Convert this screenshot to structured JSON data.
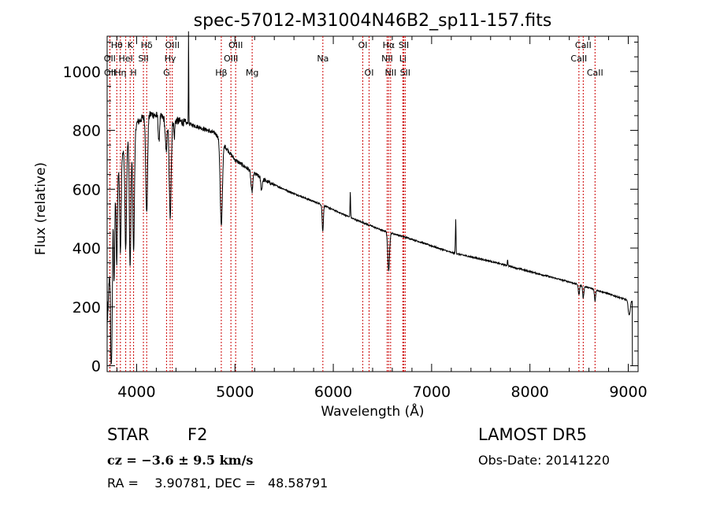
{
  "chart_data": {
    "type": "line",
    "title": "spec-57012-M31004N46B2_sp11-157.fits",
    "xlabel": "Wavelength (Å)",
    "ylabel": "Flux (relative)",
    "xlim": [
      3700,
      9100
    ],
    "ylim": [
      -20,
      1120
    ],
    "x_ticks": [
      4000,
      5000,
      6000,
      7000,
      8000,
      9000
    ],
    "y_ticks": [
      0,
      200,
      400,
      600,
      800,
      1000
    ],
    "grid": false,
    "colors": {
      "spectrum": "#000000",
      "lines": "#cc0000"
    },
    "series": [
      {
        "continuum": [
          [
            3700,
            150
          ],
          [
            3760,
            560
          ],
          [
            3830,
            690
          ],
          [
            3900,
            760
          ],
          [
            3960,
            810
          ],
          [
            4050,
            840
          ],
          [
            4150,
            855
          ],
          [
            4300,
            840
          ],
          [
            4450,
            830
          ],
          [
            4600,
            815
          ],
          [
            4800,
            790
          ],
          [
            5000,
            700
          ],
          [
            5300,
            630
          ],
          [
            5600,
            585
          ],
          [
            5900,
            545
          ],
          [
            6200,
            500
          ],
          [
            6500,
            460
          ],
          [
            6800,
            430
          ],
          [
            7200,
            385
          ],
          [
            7600,
            355
          ],
          [
            8000,
            320
          ],
          [
            8400,
            285
          ],
          [
            8700,
            255
          ],
          [
            9000,
            222
          ]
        ],
        "features": [
          {
            "x": 3740,
            "depth": 380,
            "width": 6
          },
          {
            "x": 3750,
            "depth": 280,
            "width": 5
          },
          {
            "x": 3771,
            "depth": 290,
            "width": 6
          },
          {
            "x": 3798,
            "depth": 290,
            "width": 6
          },
          {
            "x": 3835,
            "depth": 300,
            "width": 7
          },
          {
            "x": 3889,
            "depth": 360,
            "width": 8
          },
          {
            "x": 3934,
            "depth": 460,
            "width": 8
          },
          {
            "x": 3969,
            "depth": 420,
            "width": 9
          },
          {
            "x": 4102,
            "depth": 330,
            "width": 9
          },
          {
            "x": 4226,
            "depth": 90,
            "width": 6
          },
          {
            "x": 4300,
            "depth": 110,
            "width": 9
          },
          {
            "x": 4341,
            "depth": 330,
            "width": 10
          },
          {
            "x": 4383,
            "depth": 60,
            "width": 5
          },
          {
            "x": 4528,
            "depth": -330,
            "width": 2
          },
          {
            "x": 4861,
            "depth": 290,
            "width": 11
          },
          {
            "x": 5172,
            "depth": 70,
            "width": 9
          },
          {
            "x": 5270,
            "depth": 40,
            "width": 7
          },
          {
            "x": 5893,
            "depth": 90,
            "width": 6
          },
          {
            "x": 6173,
            "depth": -85,
            "width": 3
          },
          {
            "x": 6563,
            "depth": 130,
            "width": 9
          },
          {
            "x": 7245,
            "depth": -115,
            "width": 3
          },
          {
            "x": 7773,
            "depth": -22,
            "width": 3
          },
          {
            "x": 8498,
            "depth": 35,
            "width": 6
          },
          {
            "x": 8542,
            "depth": 40,
            "width": 6
          },
          {
            "x": 8662,
            "depth": 38,
            "width": 6
          },
          {
            "x": 9010,
            "depth": 50,
            "width": 10
          }
        ]
      }
    ],
    "spectral_lines": [
      {
        "label": "OII",
        "x": 3727,
        "row": 2
      },
      {
        "label": "OII",
        "x": 3729,
        "row": 3
      },
      {
        "label": "Hθ",
        "x": 3798,
        "row": 1
      },
      {
        "label": "Hη",
        "x": 3835,
        "row": 3
      },
      {
        "label": "HeI",
        "x": 3889,
        "row": 2
      },
      {
        "label": "K",
        "x": 3934,
        "row": 1
      },
      {
        "label": "H",
        "x": 3969,
        "row": 3
      },
      {
        "label": "SII",
        "x": 4069,
        "row": 2
      },
      {
        "label": "Hδ",
        "x": 4102,
        "row": 1
      },
      {
        "label": "G",
        "x": 4304,
        "row": 3
      },
      {
        "label": "Hγ",
        "x": 4341,
        "row": 2
      },
      {
        "label": "OIII",
        "x": 4363,
        "row": 1
      },
      {
        "label": "Hβ",
        "x": 4861,
        "row": 3
      },
      {
        "label": "OIII",
        "x": 4959,
        "row": 2
      },
      {
        "label": "OIII",
        "x": 5007,
        "row": 1
      },
      {
        "label": "Mg",
        "x": 5175,
        "row": 3
      },
      {
        "label": "Na",
        "x": 5894,
        "row": 2
      },
      {
        "label": "OI",
        "x": 6300,
        "row": 1
      },
      {
        "label": "OI",
        "x": 6364,
        "row": 3
      },
      {
        "label": "NII",
        "x": 6548,
        "row": 2
      },
      {
        "label": "Hα",
        "x": 6563,
        "row": 1
      },
      {
        "label": "NII",
        "x": 6583,
        "row": 3
      },
      {
        "label": "Li",
        "x": 6707,
        "row": 2
      },
      {
        "label": "SII",
        "x": 6717,
        "row": 1
      },
      {
        "label": "SII",
        "x": 6731,
        "row": 3
      },
      {
        "label": "CaII",
        "x": 8498,
        "row": 2
      },
      {
        "label": "CaII",
        "x": 8542,
        "row": 1
      },
      {
        "label": "CaII",
        "x": 8662,
        "row": 3
      }
    ]
  },
  "info": {
    "object_class": "STAR",
    "subclass": "F2",
    "survey": "LAMOST DR5",
    "redshift_text": "cz = −3.6 ± 9.5 km/s",
    "obs_date": "Obs-Date: 20141220",
    "coords": "RA =    3.90781, DEC =   48.58791"
  }
}
